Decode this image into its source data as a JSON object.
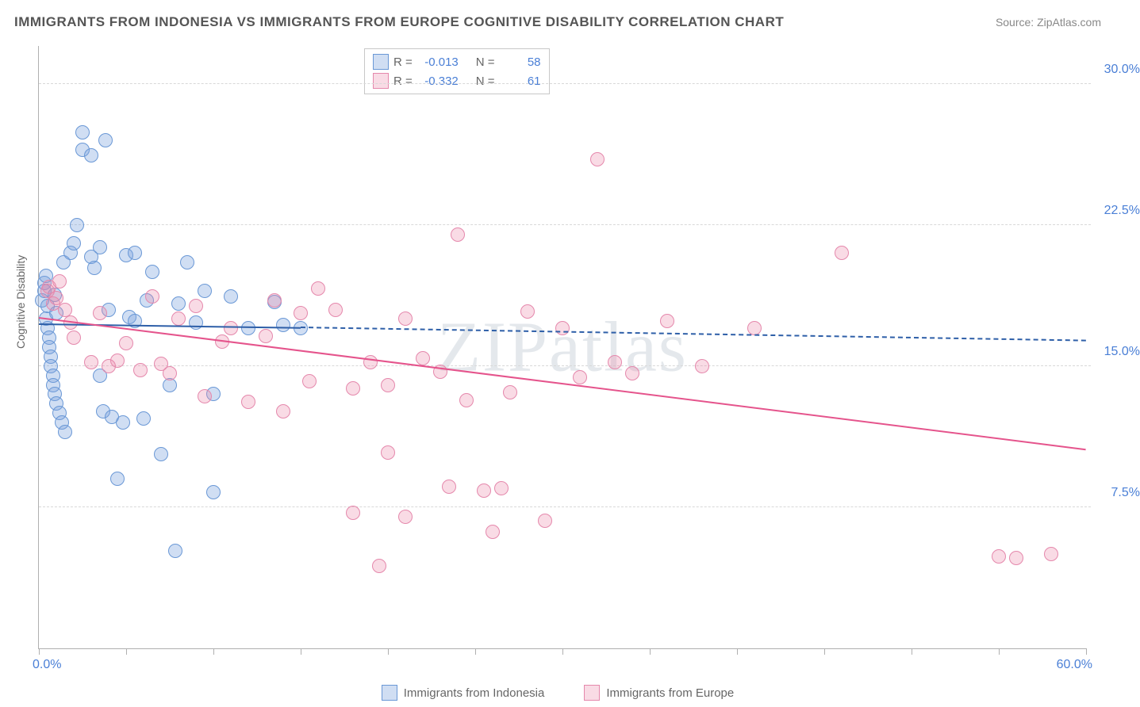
{
  "title": "IMMIGRANTS FROM INDONESIA VS IMMIGRANTS FROM EUROPE COGNITIVE DISABILITY CORRELATION CHART",
  "source_label": "Source: ZipAtlas.com",
  "y_axis_title": "Cognitive Disability",
  "watermark": "ZIPatlas",
  "chart": {
    "type": "scatter",
    "background_color": "#ffffff",
    "grid_color": "#d8d8d8",
    "axis_line_color": "#b0b0b0",
    "xlim": [
      0,
      60
    ],
    "ylim": [
      0,
      32
    ],
    "x_ticks": [
      0,
      5,
      10,
      15,
      20,
      25,
      30,
      35,
      40,
      45,
      50,
      55,
      60
    ],
    "y_gridlines": [
      7.5,
      15.0,
      22.5,
      30.0
    ],
    "y_tick_labels": [
      "7.5%",
      "15.0%",
      "22.5%",
      "30.0%"
    ],
    "x_label_min": "0.0%",
    "x_label_max": "60.0%",
    "tick_label_color": "#4a7fd6",
    "tick_label_fontsize": 16,
    "series": [
      {
        "name": "Immigrants from Indonesia",
        "marker_fill": "rgba(120,160,220,0.35)",
        "marker_stroke": "#6a98d6",
        "line_color": "#2e5fa8",
        "dash_color": "#2e5fa8",
        "R_label": "R =",
        "R_value": "-0.013",
        "N_label": "N =",
        "N_value": "58",
        "trend": {
          "x1": 0,
          "y1": 17.2,
          "x2": 15,
          "y2": 17.0
        },
        "trend_dash": {
          "x1": 15,
          "y1": 17.0,
          "x2": 60,
          "y2": 16.3
        },
        "points": [
          [
            0.2,
            18.5
          ],
          [
            0.3,
            19.0
          ],
          [
            0.3,
            19.4
          ],
          [
            0.4,
            19.8
          ],
          [
            0.4,
            17.5
          ],
          [
            0.5,
            18.2
          ],
          [
            0.5,
            17.0
          ],
          [
            0.6,
            16.5
          ],
          [
            0.6,
            16.0
          ],
          [
            0.7,
            15.5
          ],
          [
            0.7,
            15.0
          ],
          [
            0.8,
            14.5
          ],
          [
            0.8,
            14.0
          ],
          [
            0.9,
            18.8
          ],
          [
            0.9,
            13.5
          ],
          [
            1.0,
            17.8
          ],
          [
            1.0,
            13.0
          ],
          [
            1.2,
            12.5
          ],
          [
            1.3,
            12.0
          ],
          [
            1.4,
            20.5
          ],
          [
            1.5,
            11.5
          ],
          [
            1.8,
            21.0
          ],
          [
            2.0,
            21.5
          ],
          [
            2.2,
            22.5
          ],
          [
            2.5,
            26.5
          ],
          [
            2.5,
            27.4
          ],
          [
            3.0,
            26.2
          ],
          [
            3.0,
            20.8
          ],
          [
            3.2,
            20.2
          ],
          [
            3.5,
            14.5
          ],
          [
            3.5,
            21.3
          ],
          [
            3.7,
            12.6
          ],
          [
            3.8,
            27.0
          ],
          [
            4.0,
            18.0
          ],
          [
            4.2,
            12.3
          ],
          [
            4.5,
            9.0
          ],
          [
            4.8,
            12.0
          ],
          [
            5.0,
            20.9
          ],
          [
            5.2,
            17.6
          ],
          [
            5.5,
            17.4
          ],
          [
            5.5,
            21.0
          ],
          [
            6.0,
            12.2
          ],
          [
            6.2,
            18.5
          ],
          [
            6.5,
            20.0
          ],
          [
            7.0,
            10.3
          ],
          [
            7.5,
            14.0
          ],
          [
            7.8,
            5.2
          ],
          [
            8.0,
            18.3
          ],
          [
            8.5,
            20.5
          ],
          [
            9.0,
            17.3
          ],
          [
            9.5,
            19.0
          ],
          [
            10.0,
            8.3
          ],
          [
            10.0,
            13.5
          ],
          [
            11.0,
            18.7
          ],
          [
            12.0,
            17.0
          ],
          [
            13.5,
            18.4
          ],
          [
            14.0,
            17.2
          ],
          [
            15.0,
            17.0
          ]
        ]
      },
      {
        "name": "Immigrants from Europe",
        "marker_fill": "rgba(235,135,170,0.30)",
        "marker_stroke": "#e588ac",
        "line_color": "#e5548c",
        "dash_color": "#e5548c",
        "R_label": "R =",
        "R_value": "-0.332",
        "N_label": "N =",
        "N_value": "61",
        "trend": {
          "x1": 0,
          "y1": 17.5,
          "x2": 60,
          "y2": 10.5
        },
        "trend_dash": null,
        "points": [
          [
            0.5,
            19.0
          ],
          [
            0.6,
            19.2
          ],
          [
            0.8,
            18.3
          ],
          [
            1.0,
            18.6
          ],
          [
            1.2,
            19.5
          ],
          [
            1.5,
            18.0
          ],
          [
            1.8,
            17.3
          ],
          [
            2.0,
            16.5
          ],
          [
            3.0,
            15.2
          ],
          [
            3.5,
            17.8
          ],
          [
            4.0,
            15.0
          ],
          [
            4.5,
            15.3
          ],
          [
            5.0,
            16.2
          ],
          [
            5.8,
            14.8
          ],
          [
            6.5,
            18.7
          ],
          [
            7.0,
            15.1
          ],
          [
            7.5,
            14.6
          ],
          [
            8.0,
            17.5
          ],
          [
            9.0,
            18.2
          ],
          [
            9.5,
            13.4
          ],
          [
            10.5,
            16.3
          ],
          [
            11.0,
            17.0
          ],
          [
            12.0,
            13.1
          ],
          [
            13.0,
            16.6
          ],
          [
            13.5,
            18.5
          ],
          [
            14.0,
            12.6
          ],
          [
            15.0,
            17.8
          ],
          [
            15.5,
            14.2
          ],
          [
            16.0,
            19.1
          ],
          [
            17.0,
            18.0
          ],
          [
            18.0,
            13.8
          ],
          [
            18.0,
            7.2
          ],
          [
            19.0,
            15.2
          ],
          [
            19.5,
            4.4
          ],
          [
            20.0,
            14.0
          ],
          [
            20.0,
            10.4
          ],
          [
            21.0,
            17.5
          ],
          [
            21.0,
            7.0
          ],
          [
            22.0,
            15.4
          ],
          [
            23.0,
            14.7
          ],
          [
            23.5,
            8.6
          ],
          [
            24.0,
            22.0
          ],
          [
            24.5,
            13.2
          ],
          [
            25.5,
            8.4
          ],
          [
            26.0,
            6.2
          ],
          [
            26.5,
            8.5
          ],
          [
            27.0,
            13.6
          ],
          [
            28.0,
            17.9
          ],
          [
            29.0,
            6.8
          ],
          [
            30.0,
            17.0
          ],
          [
            31.0,
            14.4
          ],
          [
            32.0,
            26.0
          ],
          [
            33.0,
            15.2
          ],
          [
            34.0,
            14.6
          ],
          [
            36.0,
            17.4
          ],
          [
            38.0,
            15.0
          ],
          [
            41.0,
            17.0
          ],
          [
            46.0,
            21.0
          ],
          [
            55.0,
            4.9
          ],
          [
            56.0,
            4.8
          ],
          [
            58.0,
            5.0
          ]
        ]
      }
    ]
  },
  "legend_bottom": {
    "series1_label": "Immigrants from Indonesia",
    "series2_label": "Immigrants from Europe"
  }
}
